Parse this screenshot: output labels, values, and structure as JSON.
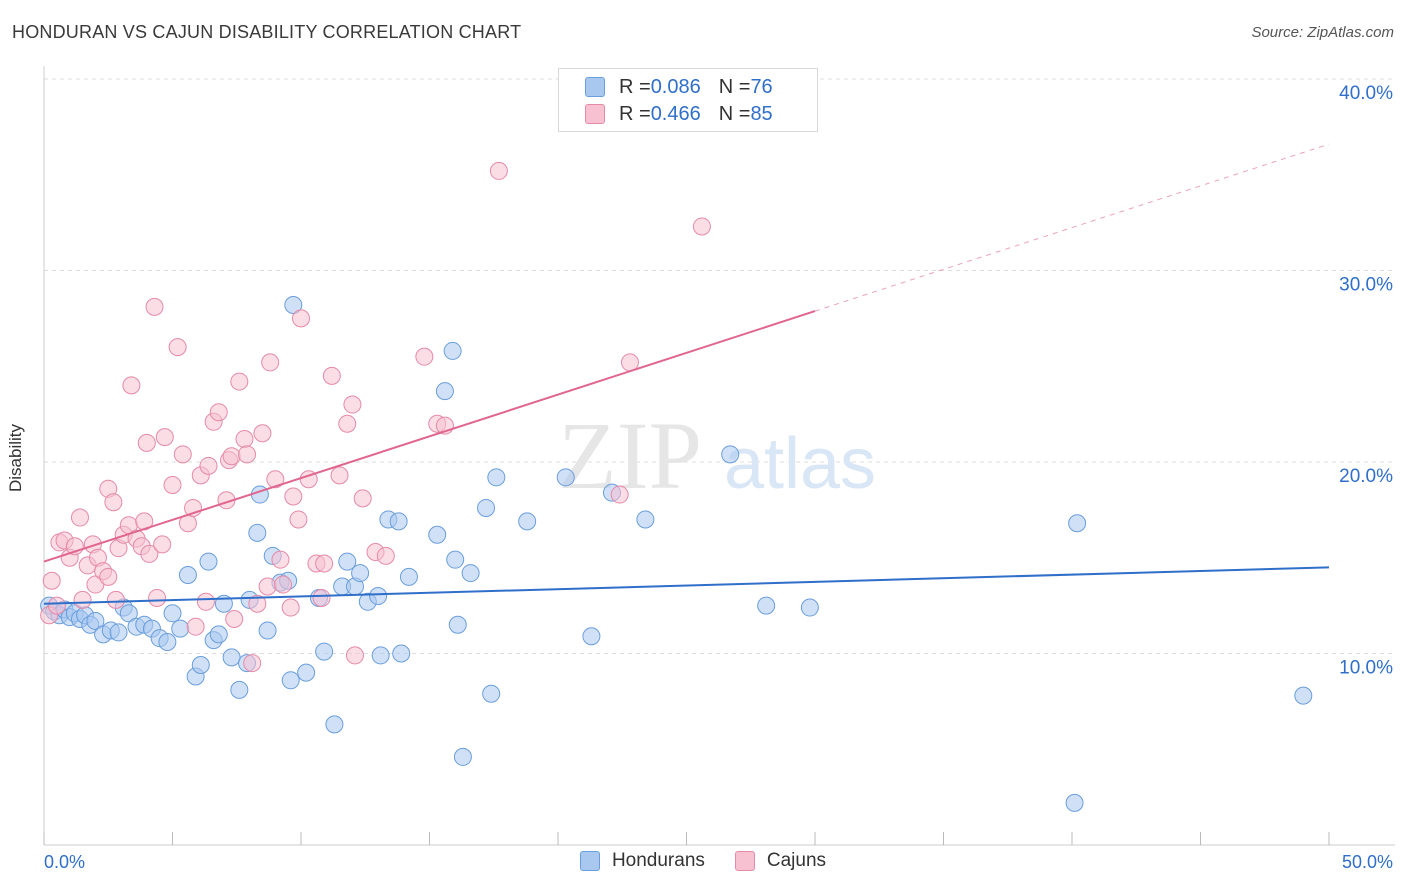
{
  "title": "HONDURAN VS CAJUN DISABILITY CORRELATION CHART",
  "source": "Source: ZipAtlas.com",
  "watermark": {
    "zip": "ZIP",
    "atlas": "atlas"
  },
  "legend_top": [
    {
      "r_label": "R = ",
      "r_value": "0.086",
      "n_label": "N = ",
      "n_value": "76",
      "color": "#a9c8f0",
      "border": "#6a9edc"
    },
    {
      "r_label": "R = ",
      "r_value": "0.466",
      "n_label": "N = ",
      "n_value": "85",
      "color": "#f7c1d2",
      "border": "#e58aa8"
    }
  ],
  "legend_bottom": [
    {
      "label": "Hondurans",
      "color": "#a9c8f0",
      "border": "#6a9edc"
    },
    {
      "label": "Cajuns",
      "color": "#f7c1d2",
      "border": "#e58aa8"
    }
  ],
  "colors": {
    "blue_line": "#2f6fc9",
    "pink_line": "#e06690",
    "tick_text": "#2f6fc9",
    "grid": "#dddddd"
  },
  "chart_data": {
    "type": "scatter",
    "xlabel": "",
    "ylabel": "Disability",
    "xlim": [
      0,
      50
    ],
    "ylim": [
      0,
      42
    ],
    "x_ticks": [
      {
        "value": 0,
        "label": "0.0%"
      },
      {
        "value": 50,
        "label": "50.0%"
      }
    ],
    "y_ticks": [
      {
        "value": 10,
        "label": "10.0%"
      },
      {
        "value": 20,
        "label": "20.0%"
      },
      {
        "value": 30,
        "label": "30.0%"
      },
      {
        "value": 40,
        "label": "40.0%"
      }
    ],
    "grid": true,
    "legend_position": "top-center",
    "series": [
      {
        "name": "Hondurans",
        "r": 0.086,
        "n": 76,
        "trend": {
          "x0": 0,
          "y0": 12.6,
          "x1": 50,
          "y1": 14.5,
          "dashed_from": null
        },
        "points": [
          [
            0.2,
            12.5
          ],
          [
            0.4,
            12.2
          ],
          [
            0.6,
            12.0
          ],
          [
            0.8,
            12.3
          ],
          [
            1.0,
            11.9
          ],
          [
            1.2,
            12.1
          ],
          [
            1.4,
            11.8
          ],
          [
            1.6,
            12.0
          ],
          [
            1.8,
            11.5
          ],
          [
            2.0,
            11.7
          ],
          [
            2.3,
            11.0
          ],
          [
            2.6,
            11.2
          ],
          [
            2.9,
            11.1
          ],
          [
            3.1,
            12.4
          ],
          [
            3.3,
            12.1
          ],
          [
            3.6,
            11.4
          ],
          [
            3.9,
            11.5
          ],
          [
            4.2,
            11.3
          ],
          [
            4.5,
            10.8
          ],
          [
            4.8,
            10.6
          ],
          [
            5.0,
            12.1
          ],
          [
            5.3,
            11.3
          ],
          [
            5.6,
            14.1
          ],
          [
            5.9,
            8.8
          ],
          [
            6.1,
            9.4
          ],
          [
            6.4,
            14.8
          ],
          [
            6.6,
            10.7
          ],
          [
            6.8,
            11.0
          ],
          [
            7.0,
            12.6
          ],
          [
            7.3,
            9.8
          ],
          [
            7.6,
            8.1
          ],
          [
            7.9,
            9.5
          ],
          [
            8.0,
            12.8
          ],
          [
            8.3,
            16.3
          ],
          [
            8.4,
            18.3
          ],
          [
            8.7,
            11.2
          ],
          [
            8.9,
            15.1
          ],
          [
            9.2,
            13.7
          ],
          [
            9.5,
            13.8
          ],
          [
            9.6,
            8.6
          ],
          [
            9.7,
            28.2
          ],
          [
            10.2,
            9.0
          ],
          [
            10.7,
            12.9
          ],
          [
            10.9,
            10.1
          ],
          [
            11.3,
            6.3
          ],
          [
            11.6,
            13.5
          ],
          [
            11.8,
            14.8
          ],
          [
            12.1,
            13.5
          ],
          [
            12.3,
            14.2
          ],
          [
            12.6,
            12.7
          ],
          [
            13.0,
            13.0
          ],
          [
            13.1,
            9.9
          ],
          [
            13.4,
            17.0
          ],
          [
            13.8,
            16.9
          ],
          [
            13.9,
            10.0
          ],
          [
            14.2,
            14.0
          ],
          [
            15.3,
            16.2
          ],
          [
            15.9,
            25.8
          ],
          [
            15.6,
            23.7
          ],
          [
            16.1,
            11.5
          ],
          [
            16.0,
            14.9
          ],
          [
            16.6,
            14.2
          ],
          [
            16.3,
            4.6
          ],
          [
            17.2,
            17.6
          ],
          [
            17.6,
            19.2
          ],
          [
            17.4,
            7.9
          ],
          [
            18.8,
            16.9
          ],
          [
            20.3,
            19.2
          ],
          [
            21.3,
            10.9
          ],
          [
            22.1,
            18.4
          ],
          [
            23.4,
            17.0
          ],
          [
            26.7,
            20.4
          ],
          [
            28.1,
            12.5
          ],
          [
            29.8,
            12.4
          ],
          [
            40.2,
            16.8
          ],
          [
            40.1,
            2.2
          ],
          [
            49.0,
            7.8
          ]
        ]
      },
      {
        "name": "Cajuns",
        "r": 0.466,
        "n": 85,
        "trend": {
          "x0": 0,
          "y0": 14.8,
          "x1": 50,
          "y1": 36.6,
          "dashed_from": 30
        },
        "points": [
          [
            0.2,
            12.0
          ],
          [
            0.3,
            13.8
          ],
          [
            0.5,
            12.5
          ],
          [
            0.6,
            15.8
          ],
          [
            0.8,
            15.9
          ],
          [
            1.0,
            15.0
          ],
          [
            1.2,
            15.6
          ],
          [
            1.4,
            17.1
          ],
          [
            1.5,
            12.8
          ],
          [
            1.7,
            14.6
          ],
          [
            1.9,
            15.7
          ],
          [
            2.0,
            13.6
          ],
          [
            2.1,
            15.0
          ],
          [
            2.3,
            14.3
          ],
          [
            2.5,
            14.0
          ],
          [
            2.5,
            18.6
          ],
          [
            2.7,
            17.9
          ],
          [
            2.8,
            12.8
          ],
          [
            2.9,
            15.5
          ],
          [
            3.1,
            16.2
          ],
          [
            3.3,
            16.7
          ],
          [
            3.4,
            24.0
          ],
          [
            3.6,
            16.0
          ],
          [
            3.8,
            15.6
          ],
          [
            3.9,
            16.9
          ],
          [
            4.0,
            21.0
          ],
          [
            4.1,
            15.2
          ],
          [
            4.3,
            28.1
          ],
          [
            4.4,
            12.9
          ],
          [
            4.6,
            15.7
          ],
          [
            4.7,
            21.3
          ],
          [
            5.0,
            18.8
          ],
          [
            5.2,
            26.0
          ],
          [
            5.4,
            20.4
          ],
          [
            5.6,
            16.8
          ],
          [
            5.8,
            17.6
          ],
          [
            5.9,
            11.4
          ],
          [
            6.1,
            19.3
          ],
          [
            6.3,
            12.7
          ],
          [
            6.4,
            19.8
          ],
          [
            6.6,
            22.1
          ],
          [
            6.8,
            22.6
          ],
          [
            7.1,
            18.0
          ],
          [
            7.2,
            20.1
          ],
          [
            7.3,
            20.3
          ],
          [
            7.4,
            11.8
          ],
          [
            7.6,
            24.2
          ],
          [
            7.8,
            21.2
          ],
          [
            7.9,
            20.4
          ],
          [
            8.1,
            9.5
          ],
          [
            8.3,
            12.6
          ],
          [
            8.5,
            21.5
          ],
          [
            8.7,
            13.5
          ],
          [
            8.8,
            25.2
          ],
          [
            9.0,
            19.1
          ],
          [
            9.2,
            14.9
          ],
          [
            9.3,
            13.6
          ],
          [
            9.6,
            12.4
          ],
          [
            9.7,
            18.2
          ],
          [
            9.9,
            17.0
          ],
          [
            10.0,
            27.5
          ],
          [
            10.3,
            19.1
          ],
          [
            10.6,
            14.7
          ],
          [
            10.8,
            12.9
          ],
          [
            10.9,
            14.7
          ],
          [
            11.2,
            24.5
          ],
          [
            11.5,
            19.3
          ],
          [
            11.8,
            22.0
          ],
          [
            12.0,
            23.0
          ],
          [
            12.1,
            9.9
          ],
          [
            12.4,
            18.1
          ],
          [
            12.9,
            15.3
          ],
          [
            13.3,
            15.1
          ],
          [
            14.8,
            25.5
          ],
          [
            15.3,
            22.0
          ],
          [
            15.6,
            21.9
          ],
          [
            17.7,
            35.2
          ],
          [
            22.4,
            18.3
          ],
          [
            22.8,
            25.2
          ],
          [
            25.6,
            32.3
          ]
        ]
      }
    ]
  }
}
